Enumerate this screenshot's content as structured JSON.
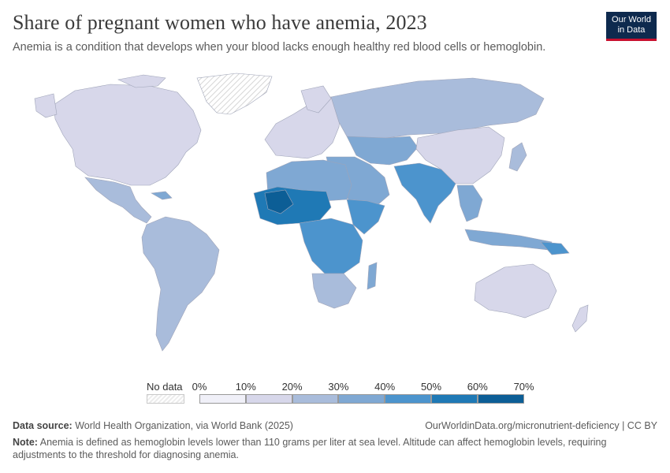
{
  "header": {
    "title": "Share of pregnant women who have anemia, 2023",
    "subtitle": "Anemia is a condition that develops when your blood lacks enough healthy red blood cells or hemoglobin."
  },
  "logo": {
    "line1": "Our World",
    "line2": "in Data"
  },
  "legend": {
    "no_data_label": "No data",
    "ticks": [
      "0%",
      "10%",
      "20%",
      "30%",
      "40%",
      "50%",
      "60%",
      "70%"
    ],
    "bin_colors": [
      "#f0f0f8",
      "#d7d7ea",
      "#a9bcdb",
      "#7fa8d3",
      "#4c94cd",
      "#1f79b5",
      "#0c5e96"
    ]
  },
  "footer": {
    "source_label": "Data source:",
    "source_text": "World Health Organization, via World Bank (2025)",
    "url_text": "OurWorldinData.org/micronutrient-deficiency | CC BY",
    "note_label": "Note:",
    "note_text": "Anemia is defined as hemoglobin levels lower than 110 grams per liter at sea level. Altitude can affect hemoglobin levels, requiring adjustments to the threshold for diagnosing anemia."
  },
  "colors": {
    "nodata": "#f2f2f2",
    "border": "#9fa4b8"
  }
}
